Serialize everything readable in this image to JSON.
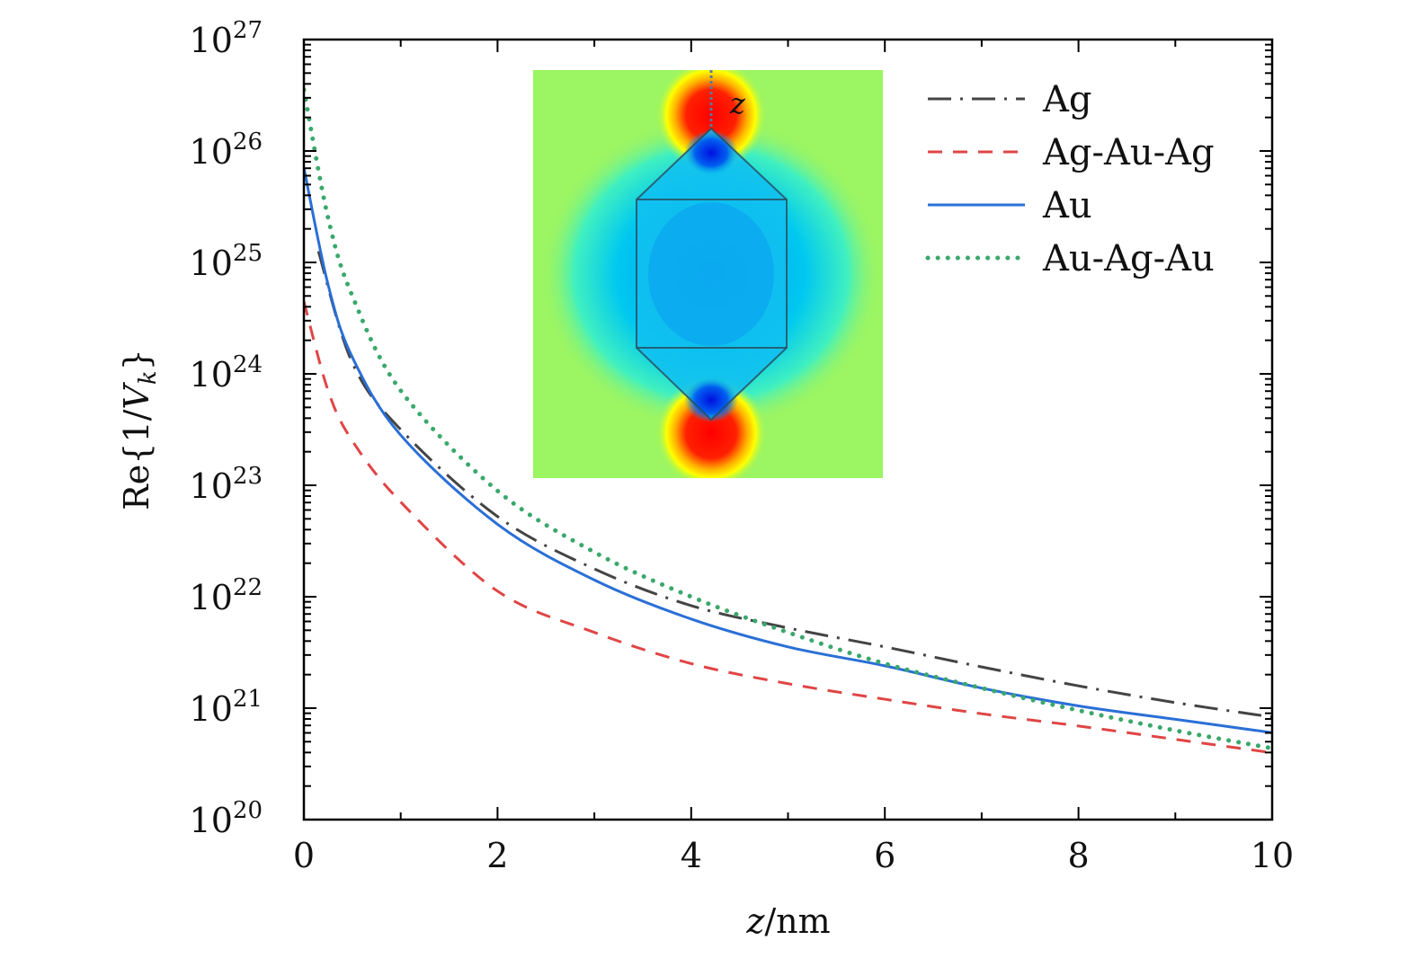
{
  "chart_data": {
    "type": "line",
    "title": "",
    "xlabel": "z/nm",
    "ylabel": "Re{1/V_k}",
    "xlim": [
      0,
      10
    ],
    "ylim": [
      1e+20,
      1e+27
    ],
    "yscale": "log",
    "grid": false,
    "legend_position": "top-right",
    "x_ticks": [
      "0",
      "2",
      "4",
      "6",
      "8",
      "10"
    ],
    "y_ticks": [
      {
        "base": "10",
        "exp": "20"
      },
      {
        "base": "10",
        "exp": "21"
      },
      {
        "base": "10",
        "exp": "22"
      },
      {
        "base": "10",
        "exp": "23"
      },
      {
        "base": "10",
        "exp": "24"
      },
      {
        "base": "10",
        "exp": "25"
      },
      {
        "base": "10",
        "exp": "26"
      },
      {
        "base": "10",
        "exp": "27"
      }
    ],
    "series": [
      {
        "name": "Ag",
        "color": "#444444",
        "style": "dash-dot",
        "x": [
          0.15,
          0.5,
          1,
          2,
          3,
          4,
          5,
          6,
          7,
          8,
          9,
          10
        ],
        "log10_y": [
          25.1,
          24.1,
          23.5,
          22.72,
          22.25,
          21.92,
          21.72,
          21.55,
          21.37,
          21.2,
          21.05,
          20.92
        ]
      },
      {
        "name": "Ag-Au-Ag",
        "color": "#e04545",
        "style": "dashed",
        "x": [
          0,
          0.25,
          0.5,
          1,
          2,
          3,
          4,
          5,
          6,
          7,
          8,
          9,
          10
        ],
        "log10_y": [
          24.65,
          23.85,
          23.4,
          22.85,
          22.05,
          21.68,
          21.4,
          21.22,
          21.08,
          20.95,
          20.84,
          20.72,
          20.6
        ]
      },
      {
        "name": "Au",
        "color": "#2a6fd6",
        "style": "solid",
        "x": [
          0,
          0.25,
          0.5,
          1,
          2,
          3,
          4,
          5,
          6,
          7,
          8,
          9,
          10
        ],
        "log10_y": [
          25.85,
          24.8,
          24.15,
          23.45,
          22.65,
          22.15,
          21.8,
          21.55,
          21.38,
          21.18,
          21.02,
          20.9,
          20.78
        ]
      },
      {
        "name": "Au-Ag-Au",
        "color": "#3aa86b",
        "style": "dotted",
        "x": [
          0,
          0.25,
          0.5,
          1,
          2,
          3,
          4,
          5,
          6,
          7,
          8,
          9,
          10
        ],
        "log10_y": [
          26.55,
          25.4,
          24.7,
          23.85,
          22.95,
          22.4,
          22.0,
          21.68,
          21.4,
          21.18,
          20.98,
          20.8,
          20.64
        ]
      }
    ],
    "inset": {
      "axis_label": "z"
    }
  }
}
